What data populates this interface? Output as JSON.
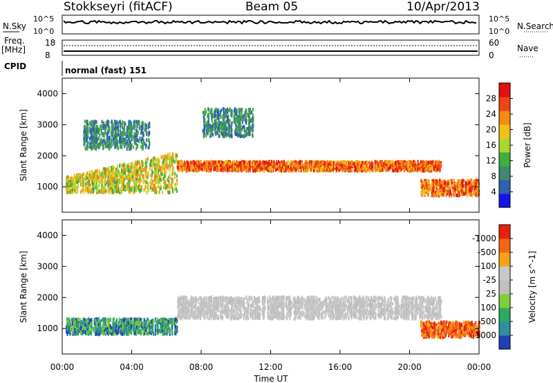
{
  "header": {
    "station": "Stokkseyri (fitACF)",
    "beam": "Beam 05",
    "date": "10/Apr/2013"
  },
  "top_panels": {
    "nsky_label": "N.Sky",
    "nsearch_label": "N.Search",
    "freq_label_1": "Freq.",
    "freq_label_2": "[MHz]",
    "nave_label": "Nave",
    "cpid_label": "CPID",
    "cpid_value": "normal (fast) 151",
    "counts_ticks": [
      "10^5",
      "10^0"
    ],
    "freq_ticks": [
      "18",
      "8"
    ],
    "nave_ticks": [
      "60",
      "0"
    ]
  },
  "chart_data": [
    {
      "type": "heatmap",
      "panel": "power",
      "ylabel": "Slant Range [km]",
      "xlabel": "Time UT",
      "x_ticks": [
        "00:00",
        "04:00",
        "08:00",
        "12:00",
        "16:00",
        "20:00",
        "00:00"
      ],
      "xlim_hours": [
        0,
        24
      ],
      "y_ticks": [
        1000,
        2000,
        3000,
        4000
      ],
      "ylim": [
        180,
        4500
      ],
      "colorbar_label": "Power [dB]",
      "colorbar_ticks": [
        "4",
        "8",
        "12",
        "16",
        "20",
        "24",
        "28"
      ],
      "colorbar_colors": [
        "#1515e6",
        "#2e5fb0",
        "#3f8a6c",
        "#3fae3f",
        "#a8d82a",
        "#f2c21b",
        "#f58a14",
        "#ee4415",
        "#e21010"
      ],
      "scatter_bands": [
        {
          "t_start": 0.2,
          "t_end": 6.6,
          "r_start": 800,
          "r_end": 1300,
          "r_end_end": 2100,
          "level": "medium"
        },
        {
          "t_start": 6.6,
          "t_end": 21.8,
          "r_start": 1500,
          "r_end": 1800,
          "level": "high"
        },
        {
          "t_start": 20.6,
          "t_end": 24.0,
          "r_start": 700,
          "r_end": 1200,
          "level": "high"
        },
        {
          "t_start": 1.2,
          "t_end": 5.0,
          "r_start": 2200,
          "r_end": 3100,
          "level": "low"
        },
        {
          "t_start": 8.0,
          "t_end": 11.0,
          "r_start": 2600,
          "r_end": 3500,
          "level": "low"
        }
      ]
    },
    {
      "type": "heatmap",
      "panel": "velocity",
      "ylabel": "Slant Range [km]",
      "xlabel": "Time UT",
      "x_ticks": [
        "00:00",
        "04:00",
        "08:00",
        "12:00",
        "16:00",
        "20:00",
        "00:00"
      ],
      "xlim_hours": [
        0,
        24
      ],
      "y_ticks": [
        1000,
        2000,
        3000,
        4000
      ],
      "ylim": [
        180,
        4500
      ],
      "colorbar_label": "Velocity [m s^-1]",
      "colorbar_ticks": [
        "1000",
        "500",
        "100",
        "25",
        "-25",
        "-100",
        "-500",
        "-1000"
      ],
      "colorbar_colors": [
        "#1f3fb4",
        "#2f8ea0",
        "#2fa860",
        "#7ccf3a",
        "#bebebe",
        "#c8c8c8",
        "#f7a21a",
        "#f56614",
        "#e62212"
      ],
      "scatter_bands": [
        {
          "t_start": 0.2,
          "t_end": 6.6,
          "r_start": 800,
          "r_end": 1300,
          "level": "positive"
        },
        {
          "t_start": 6.6,
          "t_end": 21.8,
          "r_start": 1300,
          "r_end": 2000,
          "level": "ground"
        },
        {
          "t_start": 20.6,
          "t_end": 24.0,
          "r_start": 700,
          "r_end": 1200,
          "level": "negative"
        }
      ]
    }
  ],
  "axis_label": "Time UT"
}
